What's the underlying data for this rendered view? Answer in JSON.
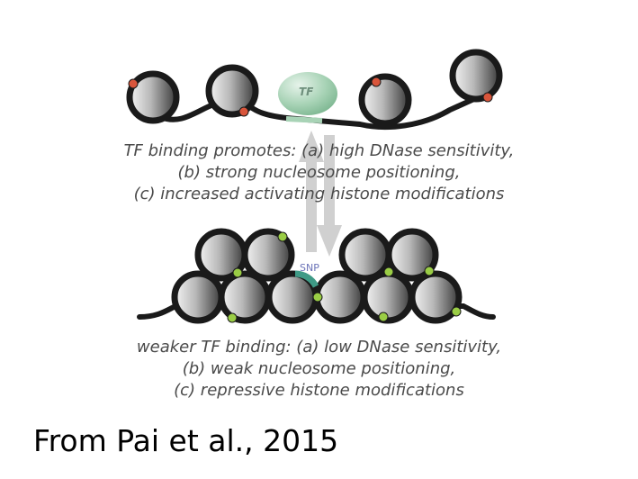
{
  "tf_label": "TF",
  "snp_label": "SNP",
  "top_caption": [
    "TF binding promotes: (a) high DNase sensitivity,",
    "(b) strong nucleosome positioning,",
    "(c) increased activating histone modifications"
  ],
  "bottom_caption": [
    "weaker TF binding: (a) low DNase sensitivity,",
    "(b) weak nucleosome positioning,",
    "(c) repressive histone modifications"
  ],
  "citation": "From Pai et al., 2015",
  "colors": {
    "dna": "#1a1a1a",
    "tf_protein": "#8fc4a2",
    "activating_mark": "#d9553b",
    "repressive_mark": "#9acd45",
    "arrows": "#d0d0d0",
    "snp_region": "#3f9a86"
  }
}
